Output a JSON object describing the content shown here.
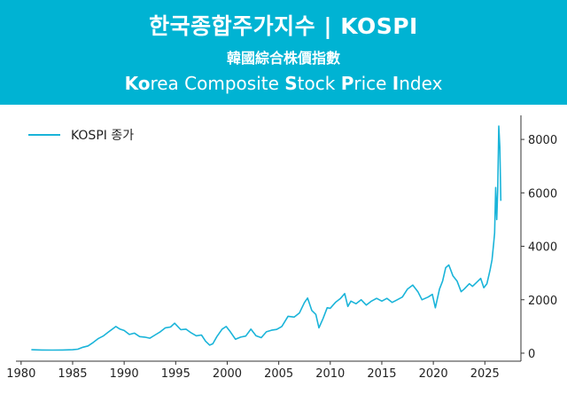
{
  "header": {
    "title": "한국종합주가지수 | KOSPI",
    "hanja_title": "韓國綜合株價指數",
    "english_parts": [
      {
        "t": "Ko",
        "b": true
      },
      {
        "t": "rea Composite ",
        "b": false
      },
      {
        "t": "S",
        "b": true
      },
      {
        "t": "tock ",
        "b": false
      },
      {
        "t": "P",
        "b": true
      },
      {
        "t": "rice ",
        "b": false
      },
      {
        "t": "I",
        "b": true
      },
      {
        "t": "ndex",
        "b": false
      }
    ]
  },
  "colors": {
    "header_bg": "#00b3d3",
    "line": "#1ab4d9",
    "axis": "#333333"
  },
  "chart_data": {
    "type": "line",
    "title": "",
    "xlabel": "",
    "ylabel": "",
    "xlim": [
      1979.5,
      2028.5
    ],
    "ylim": [
      -300,
      8900
    ],
    "xticks": [
      1980,
      1985,
      1990,
      1995,
      2000,
      2005,
      2010,
      2015,
      2020,
      2025
    ],
    "yticks": [
      0,
      2000,
      4000,
      6000,
      8000
    ],
    "y_axis_side": "right",
    "legend": {
      "position": "top-left"
    },
    "series": [
      {
        "name": "KOSPI 종가",
        "x": [
          1981.0,
          1982.0,
          1983.0,
          1984.0,
          1985.0,
          1985.5,
          1986.0,
          1986.5,
          1987.0,
          1987.5,
          1988.0,
          1988.5,
          1989.2,
          1989.6,
          1990.0,
          1990.5,
          1991.0,
          1991.5,
          1992.0,
          1992.5,
          1993.0,
          1993.5,
          1994.0,
          1994.5,
          1994.9,
          1995.5,
          1996.0,
          1996.5,
          1997.0,
          1997.5,
          1997.9,
          1998.3,
          1998.6,
          1999.0,
          1999.5,
          1999.9,
          2000.3,
          2000.8,
          2001.3,
          2001.8,
          2002.3,
          2002.8,
          2003.3,
          2003.8,
          2004.3,
          2004.8,
          2005.3,
          2005.9,
          2006.5,
          2007.0,
          2007.5,
          2007.8,
          2008.2,
          2008.6,
          2008.9,
          2009.3,
          2009.7,
          2010.0,
          2010.5,
          2011.0,
          2011.4,
          2011.7,
          2012.0,
          2012.5,
          2013.0,
          2013.5,
          2014.0,
          2014.5,
          2015.0,
          2015.5,
          2016.0,
          2016.5,
          2017.0,
          2017.5,
          2018.0,
          2018.5,
          2018.9,
          2019.5,
          2019.9,
          2020.2,
          2020.6,
          2020.9,
          2021.2,
          2021.5,
          2021.9,
          2022.3,
          2022.7,
          2023.0,
          2023.5,
          2023.8,
          2024.2,
          2024.6,
          2024.9,
          2025.2,
          2025.5,
          2025.7,
          2025.85,
          2025.95,
          2026.05,
          2026.15,
          2026.25,
          2026.35,
          2026.45,
          2026.55
        ],
        "values": [
          130,
          120,
          115,
          120,
          130,
          150,
          220,
          270,
          400,
          550,
          650,
          800,
          1000,
          900,
          850,
          700,
          750,
          620,
          600,
          560,
          680,
          800,
          950,
          980,
          1120,
          880,
          900,
          760,
          650,
          680,
          450,
          300,
          350,
          620,
          900,
          1000,
          800,
          520,
          600,
          640,
          900,
          650,
          580,
          800,
          860,
          890,
          1000,
          1380,
          1350,
          1500,
          1900,
          2060,
          1600,
          1450,
          950,
          1300,
          1700,
          1680,
          1900,
          2050,
          2230,
          1750,
          1950,
          1850,
          2000,
          1800,
          1950,
          2050,
          1950,
          2050,
          1900,
          2000,
          2100,
          2400,
          2550,
          2300,
          2000,
          2100,
          2200,
          1700,
          2400,
          2700,
          3200,
          3300,
          2900,
          2700,
          2300,
          2400,
          2600,
          2500,
          2650,
          2800,
          2450,
          2600,
          3100,
          3500,
          4100,
          4500,
          6200,
          5000,
          6100,
          8500,
          7700,
          5700
        ]
      }
    ]
  }
}
